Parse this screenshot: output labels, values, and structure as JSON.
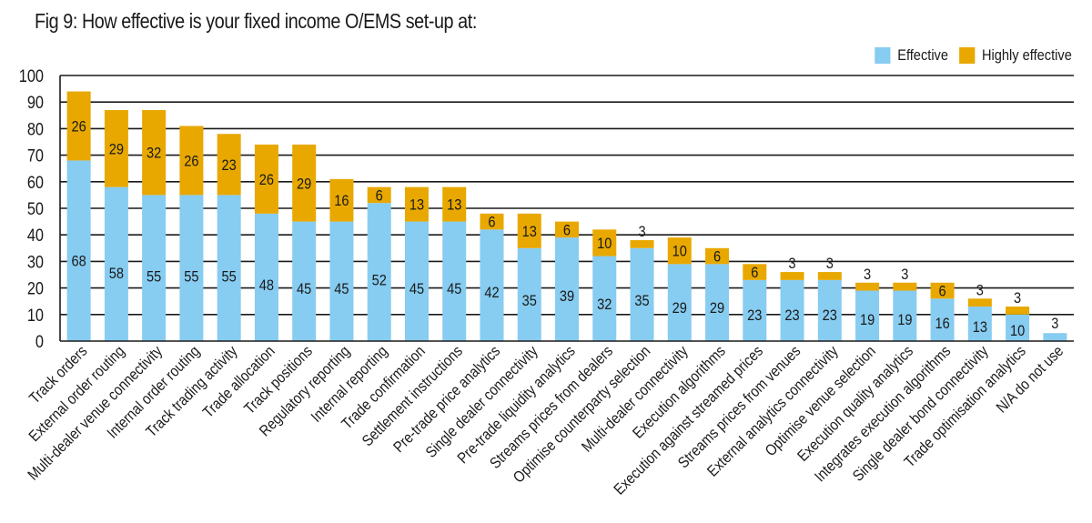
{
  "chart_data": {
    "type": "bar",
    "stacked": true,
    "title": "Fig 9: How effective is your fixed income O/EMS set-up at:",
    "xlabel": "",
    "ylabel": "",
    "ylim": [
      0,
      100
    ],
    "yticks": [
      0,
      10,
      20,
      30,
      40,
      50,
      60,
      70,
      80,
      90,
      100
    ],
    "grid": true,
    "legend_position": "top-right",
    "categories": [
      "Track orders",
      "External order routing",
      "Multi-dealer venue connectivity",
      "Internal order routing",
      "Track trading activity",
      "Trade allocation",
      "Track positions",
      "Regulatory reporting",
      "Internal reporting",
      "Trade confirmation",
      "Settlement instructions",
      "Pre-trade price analytics",
      "Single dealer connectivity",
      "Pre-trade liquidity analytics",
      "Streams prices from dealers",
      "Optimise counterparty selection",
      "Multi-dealer connectivity",
      "Execution algorithms",
      "Execution against streamed prices",
      "Streams prices from venues",
      "External analytics connectivity",
      "Optimise venue selection",
      "Execution quality analytics",
      "Integrates execution algorithms",
      "Single dealer bond connectivity",
      "Trade optimisation analytics",
      "N/A do not use"
    ],
    "series": [
      {
        "name": "Effective",
        "color": "#87ccf1",
        "values": [
          68,
          58,
          55,
          55,
          55,
          48,
          45,
          45,
          52,
          45,
          45,
          42,
          35,
          39,
          32,
          35,
          29,
          29,
          23,
          23,
          23,
          19,
          19,
          16,
          13,
          10,
          3
        ]
      },
      {
        "name": "Highly effective",
        "color": "#e8a800",
        "values": [
          26,
          29,
          32,
          26,
          23,
          26,
          29,
          16,
          6,
          13,
          13,
          6,
          13,
          6,
          10,
          3,
          10,
          6,
          6,
          3,
          3,
          3,
          3,
          6,
          3,
          3,
          null
        ]
      }
    ]
  }
}
